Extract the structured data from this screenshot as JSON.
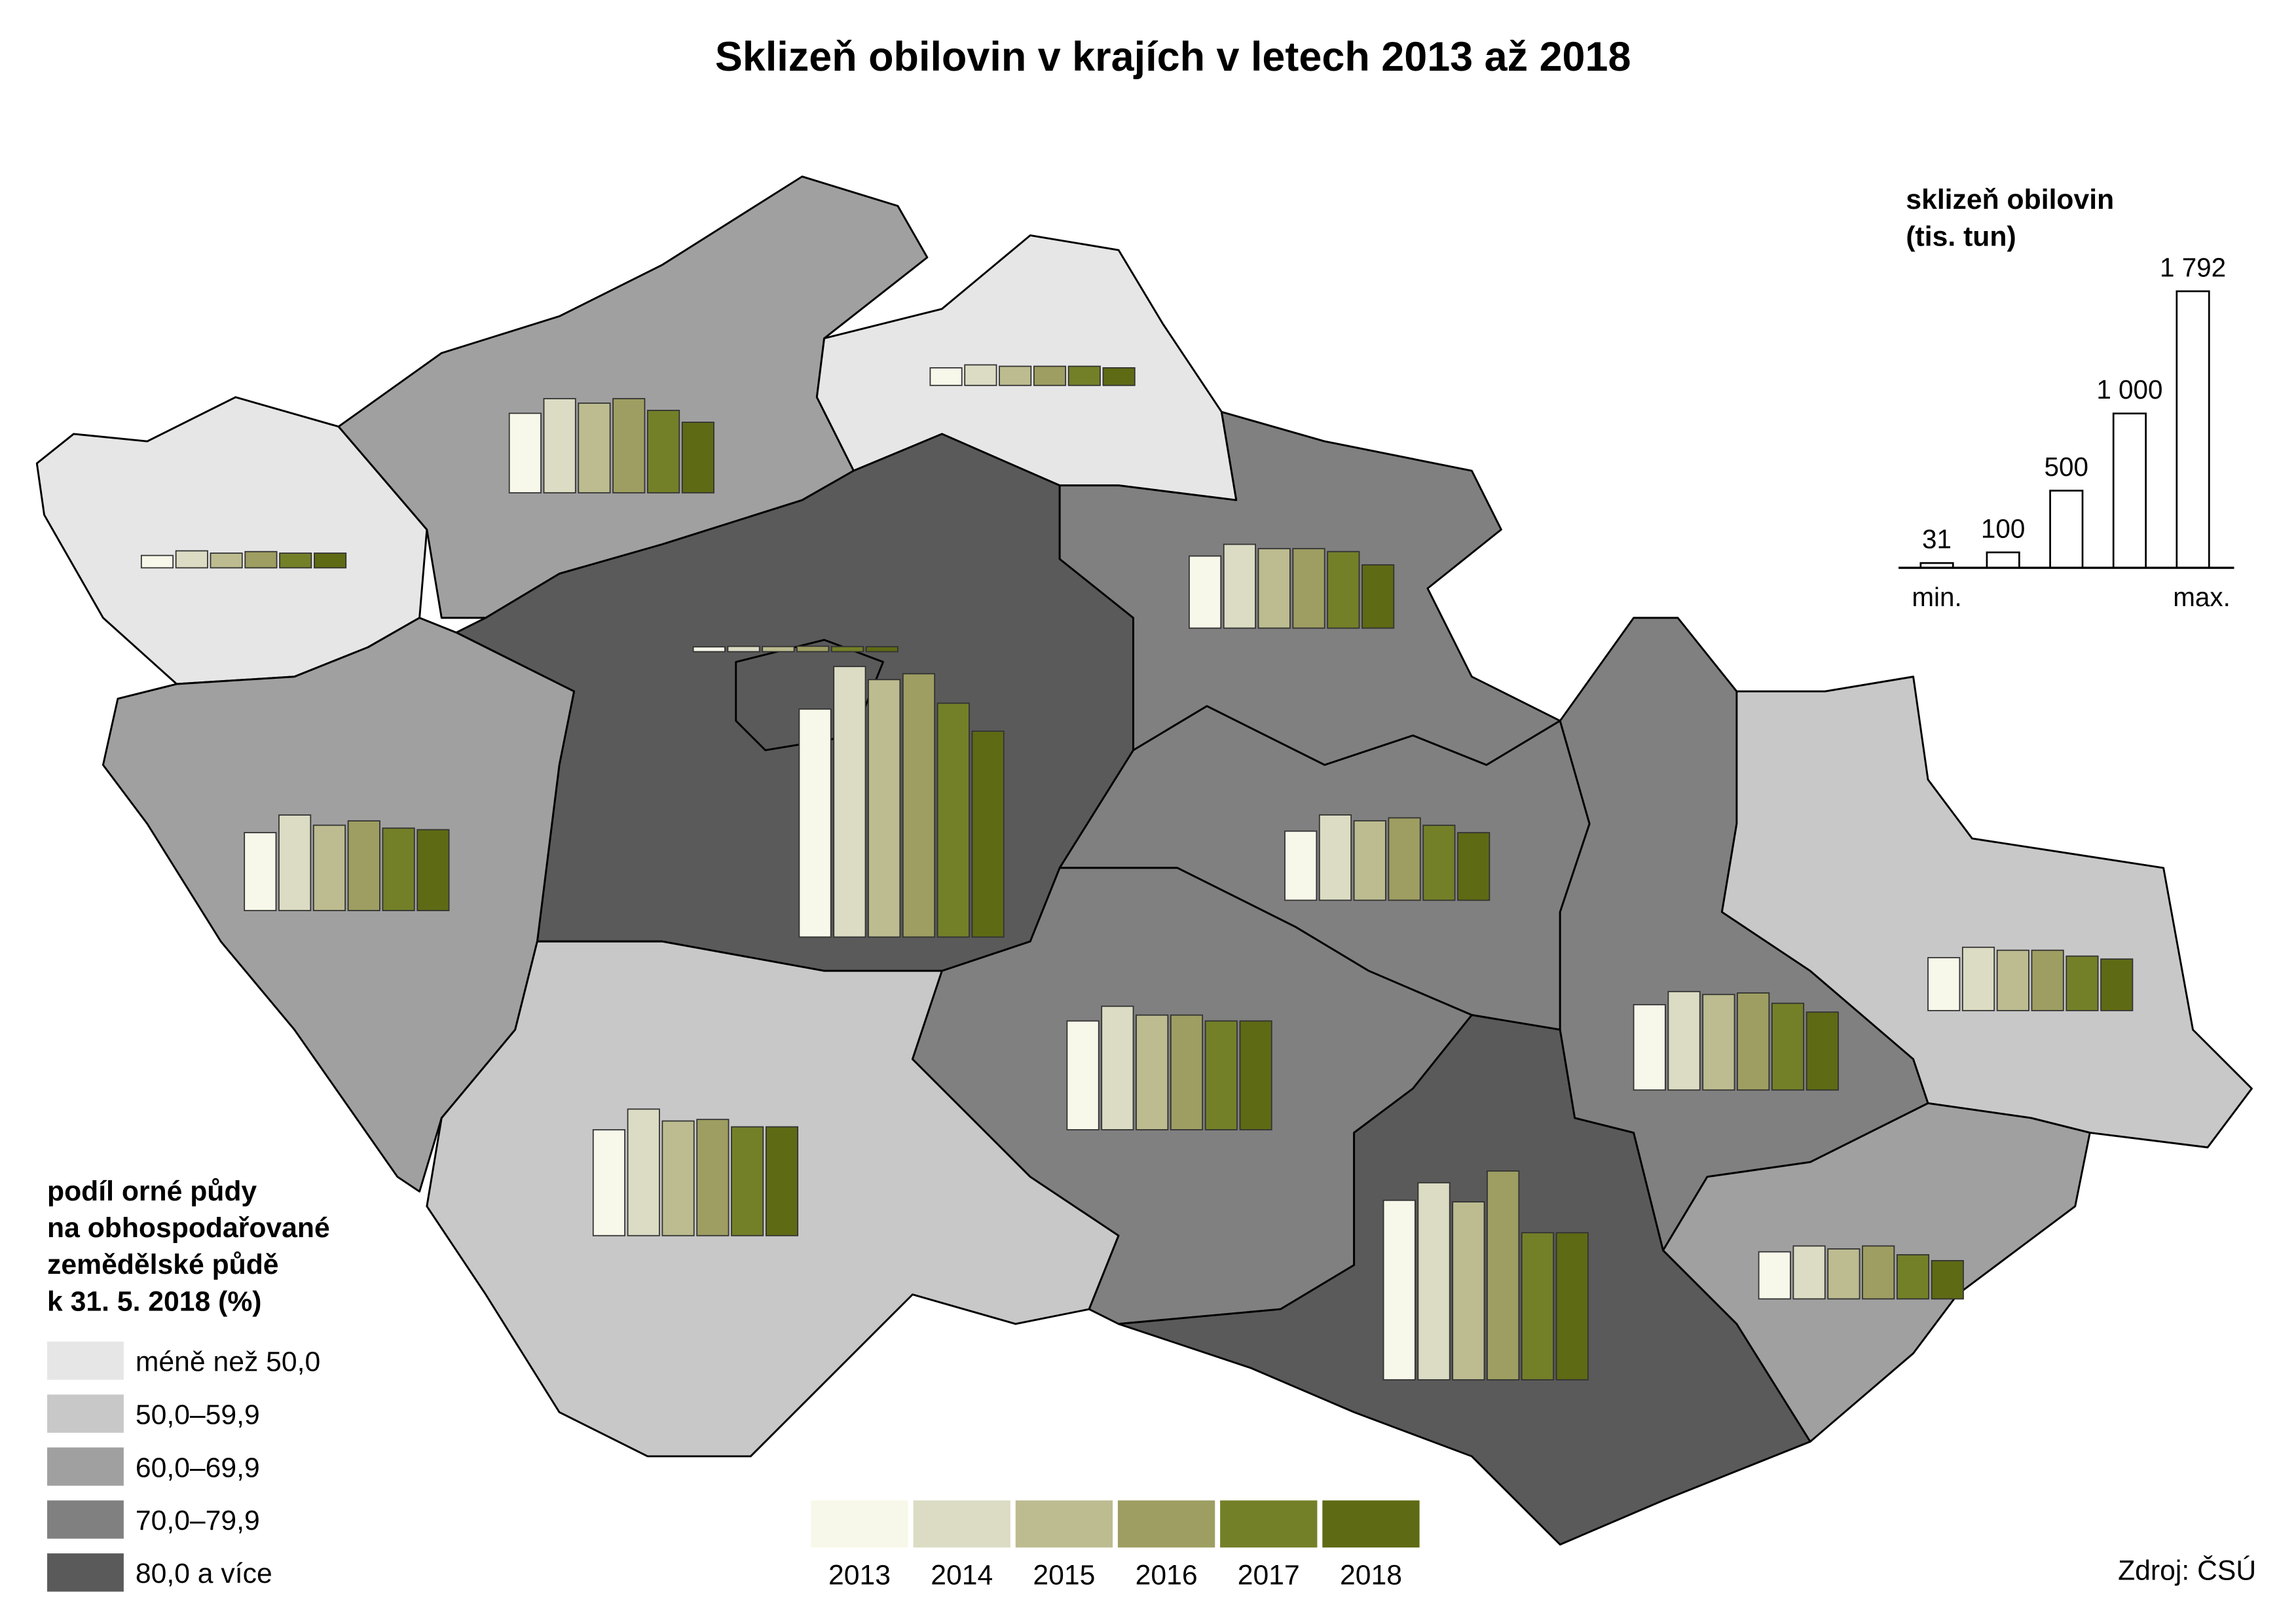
{
  "title": "Sklizeň obilovin v krajích v letech 2013 až 2018",
  "share_legend": {
    "title_lines": [
      "podíl orné půdy",
      "na obhospodařované",
      "zemědělské půdě",
      "k 31. 5. 2018 (%)"
    ],
    "classes": [
      {
        "label": "méně než 50,0",
        "color": "#e6e6e6"
      },
      {
        "label": "50,0–59,9",
        "color": "#c8c8c8"
      },
      {
        "label": "60,0–69,9",
        "color": "#a0a0a0"
      },
      {
        "label": "70,0–79,9",
        "color": "#808080"
      },
      {
        "label": "80,0 a více",
        "color": "#5a5a5a"
      }
    ]
  },
  "year_legend": {
    "categories": [
      "2013",
      "2014",
      "2015",
      "2016",
      "2017",
      "2018"
    ],
    "colors": [
      "#f8f8ea",
      "#dcdcc4",
      "#bcbc90",
      "#9e9e62",
      "#748028",
      "#5f6a14"
    ]
  },
  "size_key": {
    "title_lines": [
      "sklizeň obilovin",
      "(tis. tun)"
    ],
    "values": [
      {
        "value": 31,
        "label": "31"
      },
      {
        "value": 100,
        "label": "100"
      },
      {
        "value": 500,
        "label": "500"
      },
      {
        "value": 1000,
        "label": "1 000"
      },
      {
        "value": 1792,
        "label": "1 792"
      }
    ],
    "min_label": "min.",
    "max_label": "max."
  },
  "regions": [
    {
      "share_class": 0,
      "values": [
        80,
        110,
        95,
        105,
        95,
        95
      ]
    },
    {
      "share_class": 2,
      "values": [
        515,
        610,
        581,
        610,
        534,
        457
      ]
    },
    {
      "share_class": 0,
      "values": [
        114,
        133,
        124,
        124,
        124,
        114
      ]
    },
    {
      "share_class": 4,
      "values": [
        1477,
        1753,
        1668,
        1706,
        1515,
        1334
      ]
    },
    {
      "share_class": 4,
      "values": [
        31,
        34,
        33,
        35,
        33,
        32
      ]
    },
    {
      "share_class": 2,
      "values": [
        505,
        619,
        553,
        581,
        534,
        524
      ]
    },
    {
      "share_class": 1,
      "values": [
        686,
        820,
        743,
        753,
        705,
        705
      ]
    },
    {
      "share_class": 3,
      "values": [
        467,
        543,
        515,
        515,
        496,
        410
      ]
    },
    {
      "share_class": 3,
      "values": [
        448,
        553,
        515,
        534,
        486,
        438
      ]
    },
    {
      "share_class": 3,
      "values": [
        705,
        800,
        743,
        743,
        705,
        705
      ]
    },
    {
      "share_class": 4,
      "values": [
        1163,
        1277,
        1153,
        1353,
        953,
        953
      ]
    },
    {
      "share_class": 3,
      "values": [
        553,
        638,
        619,
        629,
        562,
        505
      ]
    },
    {
      "share_class": 1,
      "values": [
        343,
        410,
        391,
        391,
        353,
        334
      ]
    },
    {
      "share_class": 2,
      "values": [
        305,
        343,
        324,
        343,
        286,
        248
      ]
    }
  ],
  "source": "Zdroj: ČSÚ"
}
